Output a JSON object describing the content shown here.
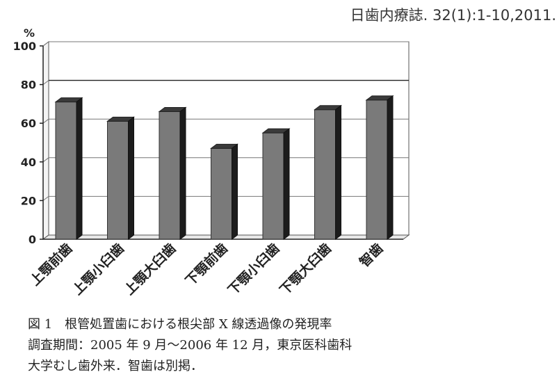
{
  "citation": "日歯内療誌. 32(1):1-10,2011.",
  "chart_data": {
    "type": "bar",
    "ylabel": "%",
    "ylim": [
      0,
      100
    ],
    "yticks": [
      "0",
      "20",
      "40",
      "60",
      "80",
      "100"
    ],
    "categories": [
      "上顎前歯",
      "上顎小臼歯",
      "上顎大臼歯",
      "下顎前歯",
      "下顎小臼歯",
      "下顎大臼歯",
      "智歯"
    ],
    "values": [
      71,
      61,
      66,
      47,
      55,
      67,
      72
    ],
    "bar_color": "#7a7a7a",
    "grid": true,
    "style": "3d"
  },
  "caption": {
    "line1": "図 1　根管処置歯における根尖部 X 線透過像の発現率",
    "line2": "調査期間：2005 年 9 月〜2006 年 12 月，東京医科歯科",
    "line3": "大学むし歯外来．智歯は別掲．"
  }
}
